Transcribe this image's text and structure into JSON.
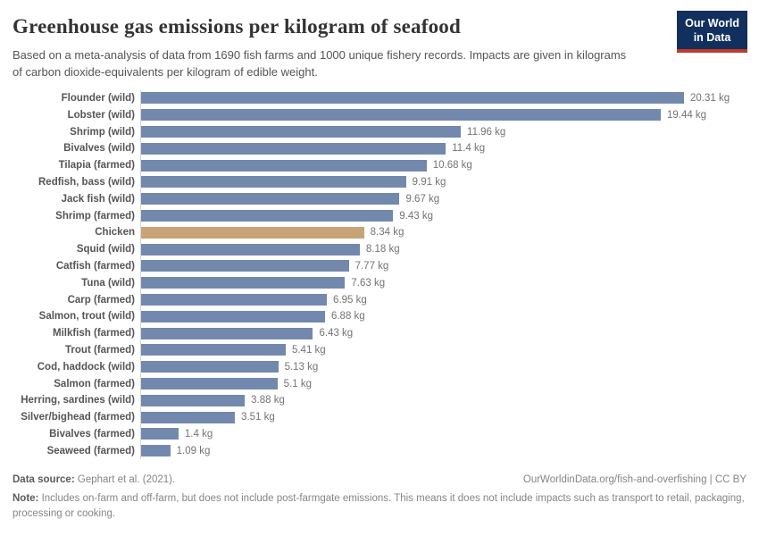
{
  "header": {
    "title": "Greenhouse gas emissions per kilogram of seafood",
    "subtitle": "Based on a meta-analysis of data from 1690 fish farms and 1000 unique fishery records. Impacts are given in kilograms of carbon dioxide-equivalents per kilogram of edible weight.",
    "logo_line1": "Our World",
    "logo_line2": "in Data"
  },
  "colors": {
    "bar": "#7289ad",
    "highlight_bar": "#c8a377",
    "axis_line": "#d8d8d8",
    "logo_bg": "#12305e",
    "logo_stripe": "#c0392b"
  },
  "chart_data": {
    "type": "bar",
    "orientation": "horizontal",
    "title": "Greenhouse gas emissions per kilogram of seafood",
    "xlabel": "",
    "ylabel": "",
    "unit": "kg",
    "xlim": [
      0,
      20.31
    ],
    "grid": false,
    "legend": "none",
    "categories": [
      "Flounder (wild)",
      "Lobster (wild)",
      "Shrimp (wild)",
      "Bivalves (wild)",
      "Tilapia (farmed)",
      "Redfish, bass (wild)",
      "Jack fish (wild)",
      "Shrimp (farmed)",
      "Chicken",
      "Squid (wild)",
      "Catfish (farmed)",
      "Tuna (wild)",
      "Carp (farmed)",
      "Salmon, trout (wild)",
      "Milkfish (farmed)",
      "Trout (farmed)",
      "Cod, haddock (wild)",
      "Salmon (farmed)",
      "Herring, sardines (wild)",
      "Silver/bighead (farmed)",
      "Bivalves (farmed)",
      "Seaweed (farmed)"
    ],
    "values": [
      20.31,
      19.44,
      11.96,
      11.4,
      10.68,
      9.91,
      9.67,
      9.43,
      8.34,
      8.18,
      7.77,
      7.63,
      6.95,
      6.88,
      6.43,
      5.41,
      5.13,
      5.1,
      3.88,
      3.51,
      1.4,
      1.09
    ],
    "rows": [
      {
        "label": "Flounder (wild)",
        "value": 20.31,
        "display": "20.31 kg",
        "highlight": false
      },
      {
        "label": "Lobster (wild)",
        "value": 19.44,
        "display": "19.44 kg",
        "highlight": false
      },
      {
        "label": "Shrimp (wild)",
        "value": 11.96,
        "display": "11.96 kg",
        "highlight": false
      },
      {
        "label": "Bivalves (wild)",
        "value": 11.4,
        "display": "11.4 kg",
        "highlight": false
      },
      {
        "label": "Tilapia (farmed)",
        "value": 10.68,
        "display": "10.68 kg",
        "highlight": false
      },
      {
        "label": "Redfish, bass (wild)",
        "value": 9.91,
        "display": "9.91 kg",
        "highlight": false
      },
      {
        "label": "Jack fish (wild)",
        "value": 9.67,
        "display": "9.67 kg",
        "highlight": false
      },
      {
        "label": "Shrimp (farmed)",
        "value": 9.43,
        "display": "9.43 kg",
        "highlight": false
      },
      {
        "label": "Chicken",
        "value": 8.34,
        "display": "8.34 kg",
        "highlight": true
      },
      {
        "label": "Squid (wild)",
        "value": 8.18,
        "display": "8.18 kg",
        "highlight": false
      },
      {
        "label": "Catfish (farmed)",
        "value": 7.77,
        "display": "7.77 kg",
        "highlight": false
      },
      {
        "label": "Tuna (wild)",
        "value": 7.63,
        "display": "7.63 kg",
        "highlight": false
      },
      {
        "label": "Carp (farmed)",
        "value": 6.95,
        "display": "6.95 kg",
        "highlight": false
      },
      {
        "label": "Salmon, trout (wild)",
        "value": 6.88,
        "display": "6.88 kg",
        "highlight": false
      },
      {
        "label": "Milkfish (farmed)",
        "value": 6.43,
        "display": "6.43 kg",
        "highlight": false
      },
      {
        "label": "Trout (farmed)",
        "value": 5.41,
        "display": "5.41 kg",
        "highlight": false
      },
      {
        "label": "Cod, haddock (wild)",
        "value": 5.13,
        "display": "5.13 kg",
        "highlight": false
      },
      {
        "label": "Salmon (farmed)",
        "value": 5.1,
        "display": "5.1 kg",
        "highlight": false
      },
      {
        "label": "Herring, sardines (wild)",
        "value": 3.88,
        "display": "3.88 kg",
        "highlight": false
      },
      {
        "label": "Silver/bighead (farmed)",
        "value": 3.51,
        "display": "3.51 kg",
        "highlight": false
      },
      {
        "label": "Bivalves (farmed)",
        "value": 1.4,
        "display": "1.4 kg",
        "highlight": false
      },
      {
        "label": "Seaweed (farmed)",
        "value": 1.09,
        "display": "1.09 kg",
        "highlight": false
      }
    ]
  },
  "footer": {
    "data_source_label": "Data source:",
    "data_source_value": "Gephart et al. (2021).",
    "url_credit": "OurWorldinData.org/fish-and-overfishing | CC BY",
    "note_label": "Note:",
    "note_text": "Includes on-farm and off-farm, but does not include post-farmgate emissions. This means it does not include impacts such as transport to retail, packaging, processing or cooking."
  }
}
